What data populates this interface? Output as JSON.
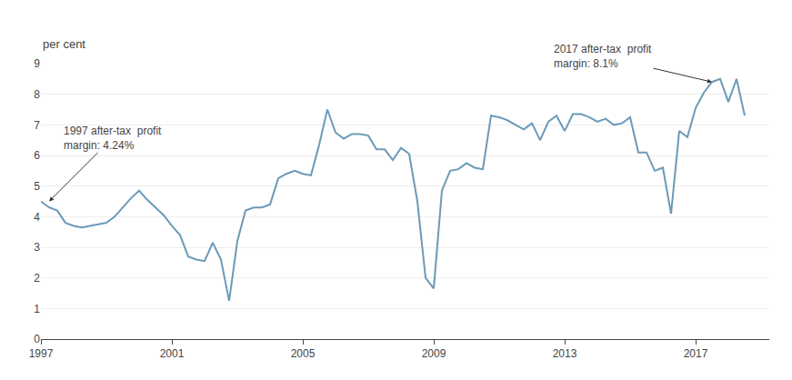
{
  "chart_data": {
    "type": "line",
    "ylabel": "per cent",
    "xlim": [
      1997.0,
      2019.25
    ],
    "ylim": [
      0,
      9
    ],
    "xticks": [
      1997,
      2001,
      2005,
      2009,
      2013,
      2017
    ],
    "yticks": [
      0,
      1,
      2,
      3,
      4,
      5,
      6,
      7,
      8,
      9
    ],
    "grid": "y",
    "color": "#6b9ab8",
    "annotations": [
      {
        "text": "1997 after-tax  profit\nmargin: 4.24%",
        "x": 1997.25,
        "y": 4.5
      },
      {
        "text": "2017 after-tax  profit\nmargin: 8.1%",
        "x": 2017.5,
        "y": 8.4
      }
    ],
    "x": [
      1997.0,
      1997.25,
      1997.5,
      1997.75,
      1998.0,
      1998.25,
      1998.5,
      1998.75,
      1999.0,
      1999.25,
      1999.5,
      1999.75,
      2000.0,
      2000.25,
      2000.5,
      2000.75,
      2001.0,
      2001.25,
      2001.5,
      2001.75,
      2002.0,
      2002.25,
      2002.5,
      2002.75,
      2003.0,
      2003.25,
      2003.5,
      2003.75,
      2004.0,
      2004.25,
      2004.5,
      2004.75,
      2005.0,
      2005.25,
      2005.5,
      2005.75,
      2006.0,
      2006.25,
      2006.5,
      2006.75,
      2007.0,
      2007.25,
      2007.5,
      2007.75,
      2008.0,
      2008.25,
      2008.5,
      2008.75,
      2009.0,
      2009.25,
      2009.5,
      2009.75,
      2010.0,
      2010.25,
      2010.5,
      2010.75,
      2011.0,
      2011.25,
      2011.5,
      2011.75,
      2012.0,
      2012.25,
      2012.5,
      2012.75,
      2013.0,
      2013.25,
      2013.5,
      2013.75,
      2014.0,
      2014.25,
      2014.5,
      2014.75,
      2015.0,
      2015.25,
      2015.5,
      2015.75,
      2016.0,
      2016.25,
      2016.5,
      2016.75,
      2017.0,
      2017.25,
      2017.5,
      2017.75,
      2018.0,
      2018.25,
      2018.5
    ],
    "values": [
      4.5,
      4.3,
      4.2,
      3.8,
      3.7,
      3.65,
      3.7,
      3.75,
      3.8,
      4.0,
      4.3,
      4.6,
      4.85,
      4.55,
      4.3,
      4.05,
      3.7,
      3.4,
      2.7,
      2.6,
      2.55,
      3.15,
      2.6,
      1.25,
      3.2,
      4.2,
      4.3,
      4.3,
      4.4,
      5.25,
      5.4,
      5.5,
      5.4,
      5.35,
      6.35,
      7.5,
      6.75,
      6.55,
      6.7,
      6.7,
      6.65,
      6.2,
      6.2,
      5.85,
      6.25,
      6.05,
      4.5,
      2.0,
      1.65,
      4.85,
      5.5,
      5.55,
      5.75,
      5.6,
      5.55,
      7.3,
      7.25,
      7.15,
      7.0,
      6.85,
      7.05,
      6.5,
      7.1,
      7.3,
      6.8,
      7.35,
      7.35,
      7.25,
      7.1,
      7.2,
      7.0,
      7.05,
      7.25,
      6.1,
      6.1,
      5.5,
      5.6,
      4.1,
      6.8,
      6.6,
      7.55,
      8.05,
      8.4,
      8.5,
      7.75,
      8.5,
      7.3
    ]
  }
}
